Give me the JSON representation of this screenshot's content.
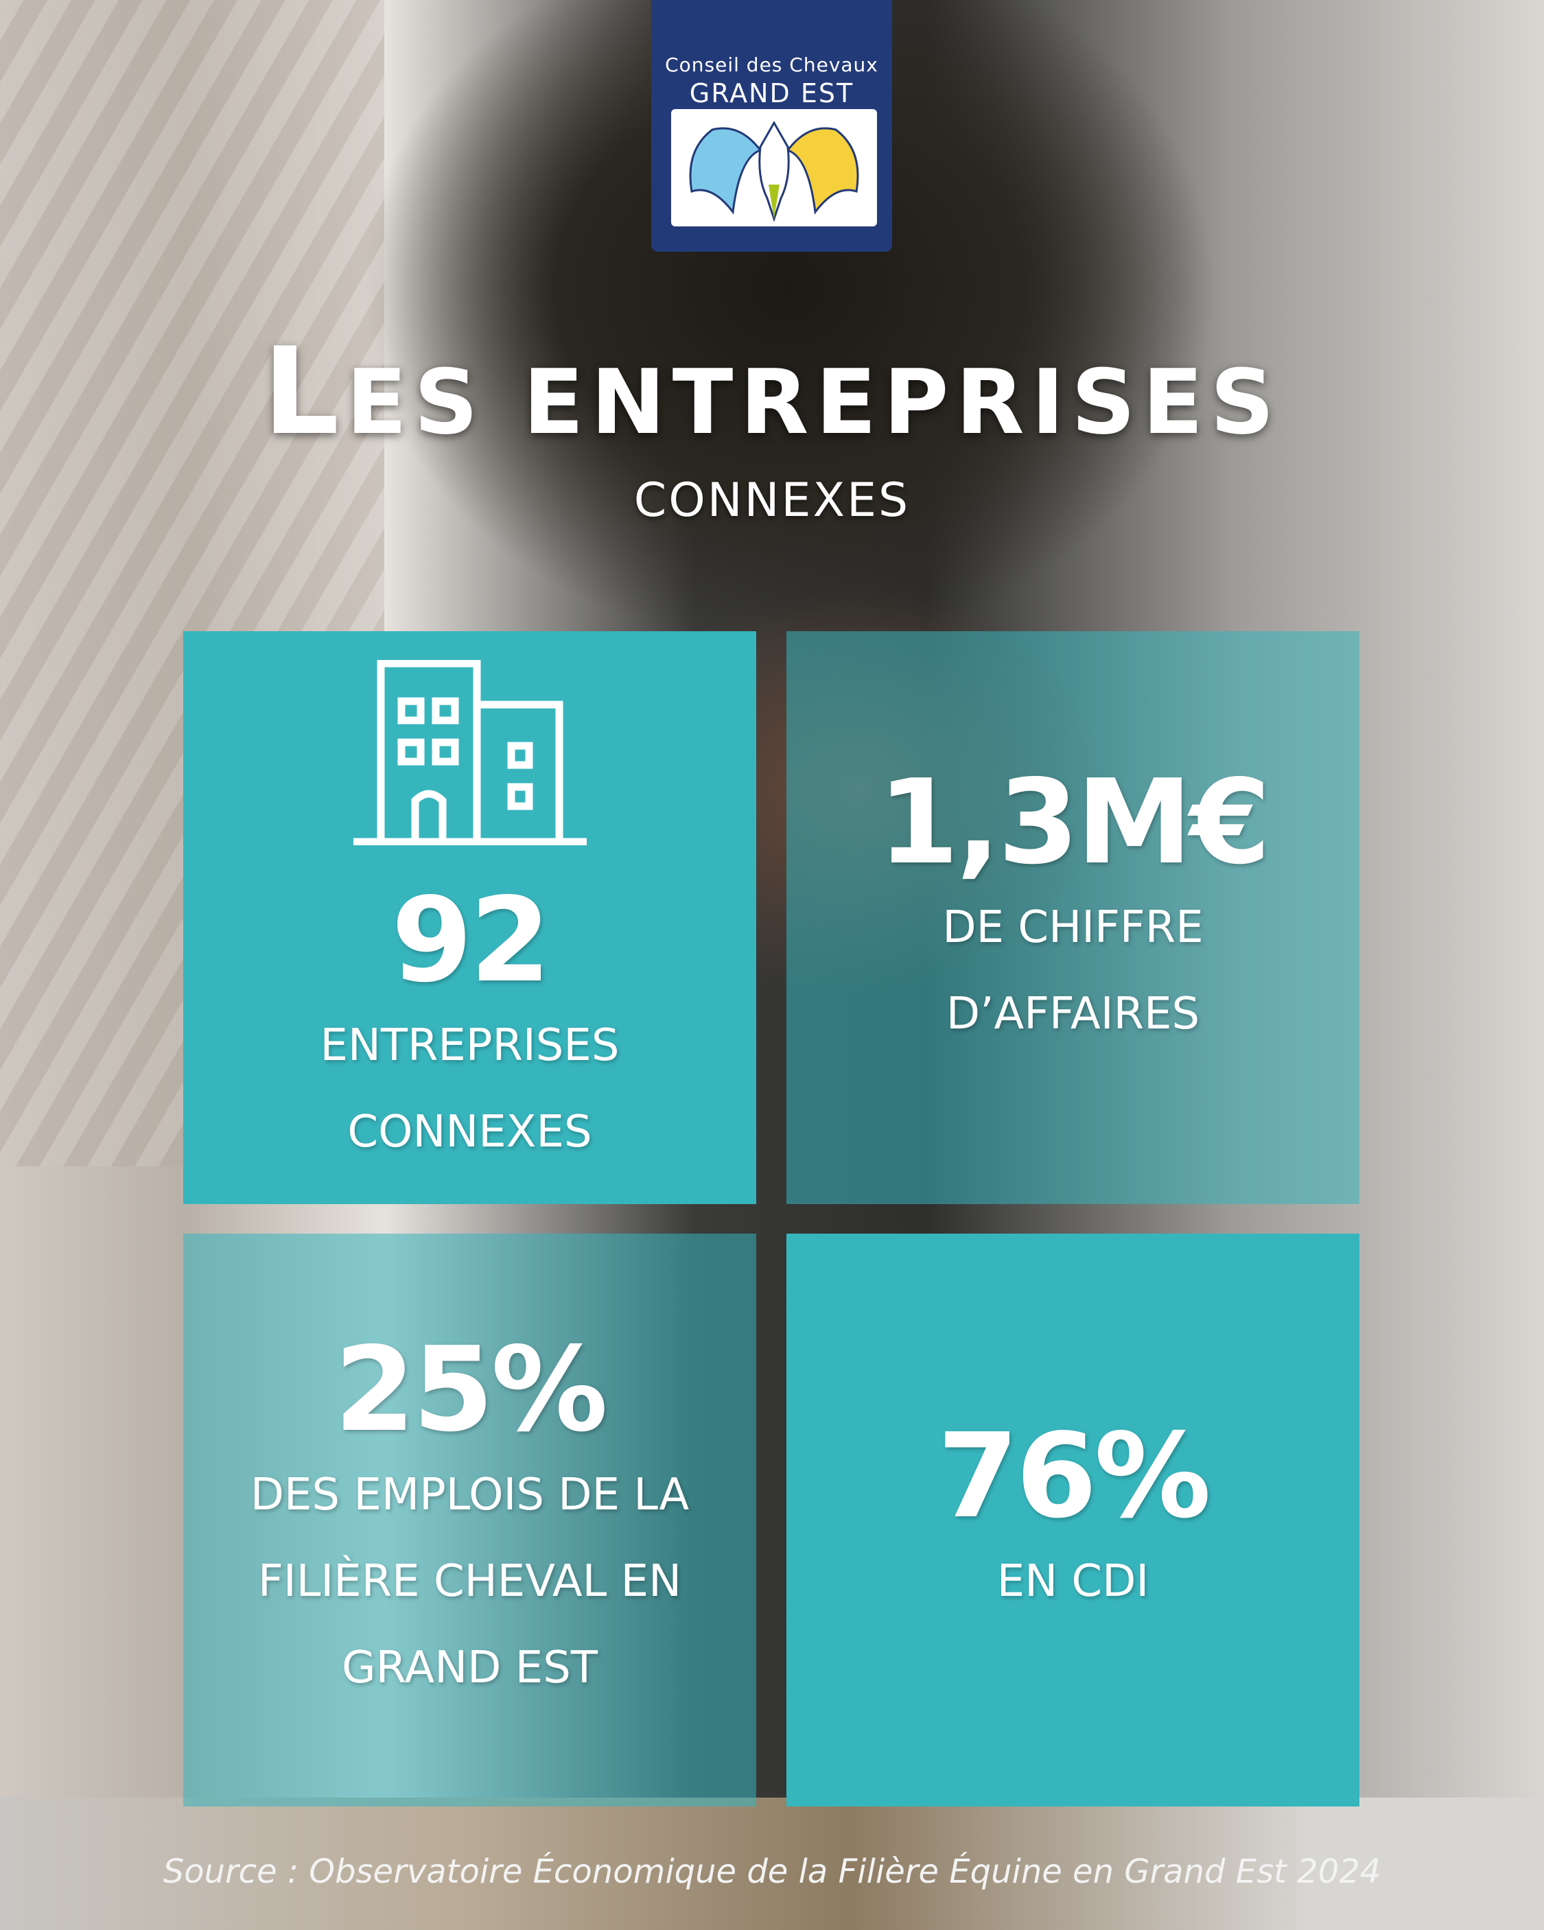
{
  "logo": {
    "line1": "Conseil des Chevaux",
    "line2": "GRAND EST",
    "colors": [
      "#233a78",
      "#7ec8ea",
      "#a8c41c",
      "#f5d03c"
    ]
  },
  "title": {
    "first": "L",
    "rest": "ES ENTREPRISES",
    "subtitle": "CONNEXES"
  },
  "tiles": [
    {
      "icon": "building-icon",
      "value": "92",
      "lines": [
        "ENTREPRISES",
        "CONNEXES"
      ]
    },
    {
      "value": "1,3M€",
      "lines": [
        "DE CHIFFRE",
        "D’AFFAIRES"
      ]
    },
    {
      "value": "25%",
      "lines": [
        "DES EMPLOIS DE LA",
        "FILIÈRE CHEVAL EN",
        "GRAND EST"
      ]
    },
    {
      "value": "76%",
      "lines": [
        "EN CDI"
      ]
    }
  ],
  "source": "Source : Observatoire Économique de la Filière Équine en Grand Est 2024",
  "colors": {
    "teal": "#37b5bd",
    "navy": "#233a78"
  }
}
